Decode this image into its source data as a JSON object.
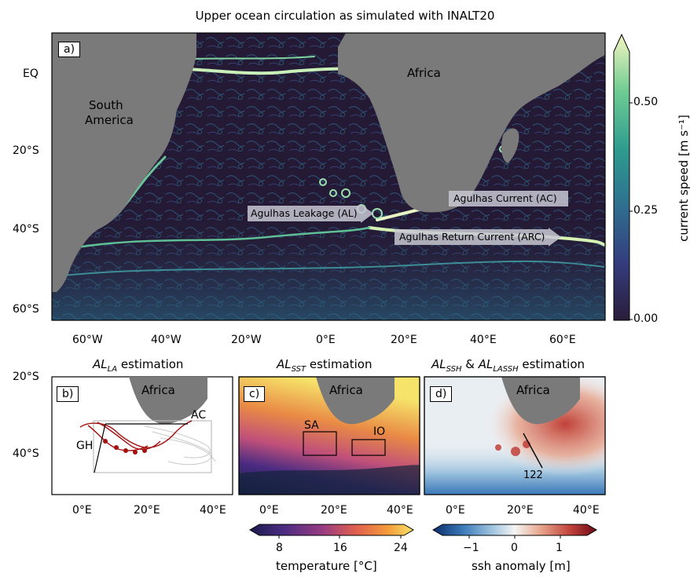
{
  "figure_title": "Upper ocean circulation as simulated with INALT20",
  "panel_a": {
    "panel_label": "a)",
    "land_labels": {
      "africa": "Africa",
      "south_america_line1": "South",
      "south_america_line2": "America"
    },
    "current_labels": {
      "agulhas_current": "Agulhas Current (AC)",
      "agulhas_leakage": "Agulhas Leakage (AL)",
      "agulhas_return_current": "Agulhas Return Current (ARC)"
    },
    "y_ticks": [
      "EQ",
      "20°S",
      "40°S",
      "60°S"
    ],
    "x_ticks": [
      "60°W",
      "40°W",
      "20°W",
      "0°E",
      "20°E",
      "40°E",
      "60°E"
    ],
    "colorbar": {
      "label": "current speed [m s⁻¹]",
      "ticks": [
        "0.00",
        "0.25",
        "0.50"
      ],
      "range": [
        0.0,
        0.65
      ],
      "colors": [
        "#2a1d3b",
        "#343c7e",
        "#2f6f8f",
        "#2e9c8f",
        "#6fcb93",
        "#f4f5c0"
      ]
    }
  },
  "panel_b": {
    "title_main": "AL",
    "title_sub": "LA",
    "title_rest": " estimation",
    "panel_label": "b)",
    "land_label": "Africa",
    "annotations": {
      "ac": "AC",
      "gh": "GH"
    },
    "y_ticks": [
      "20°S",
      "40°S"
    ],
    "x_ticks": [
      "0°E",
      "20°E",
      "40°E"
    ]
  },
  "panel_c": {
    "title_main": "AL",
    "title_sub": "SST",
    "title_rest": " estimation",
    "panel_label": "c)",
    "land_label": "Africa",
    "box_labels": {
      "sa": "SA",
      "io": "IO"
    },
    "x_ticks": [
      "0°E",
      "20°E",
      "40°E"
    ],
    "colorbar": {
      "label": "temperature [°C]",
      "ticks": [
        "8",
        "16",
        "24"
      ],
      "range": [
        4,
        26
      ],
      "colors": [
        "#1b1b4b",
        "#4a2b82",
        "#9a3c82",
        "#e0604d",
        "#f59e3b",
        "#f6e36a"
      ]
    }
  },
  "panel_d": {
    "title_main_1": "AL",
    "title_sub_1": "SSH",
    "title_amp": " & ",
    "title_main_2": "AL",
    "title_sub_2": "LASSH",
    "title_rest": " estimation",
    "panel_label": "d)",
    "land_label": "Africa",
    "section_label": "122",
    "x_ticks": [
      "0°E",
      "20°E",
      "40°E"
    ],
    "colorbar": {
      "label": "ssh anomaly [m]",
      "ticks": [
        "−1",
        "0",
        "1"
      ],
      "range": [
        -1.6,
        1.6
      ],
      "colors": [
        "#0b2d6b",
        "#3a78b8",
        "#9fc4df",
        "#f4f4f4",
        "#e7a58c",
        "#c0413a",
        "#6b0a18"
      ]
    }
  }
}
